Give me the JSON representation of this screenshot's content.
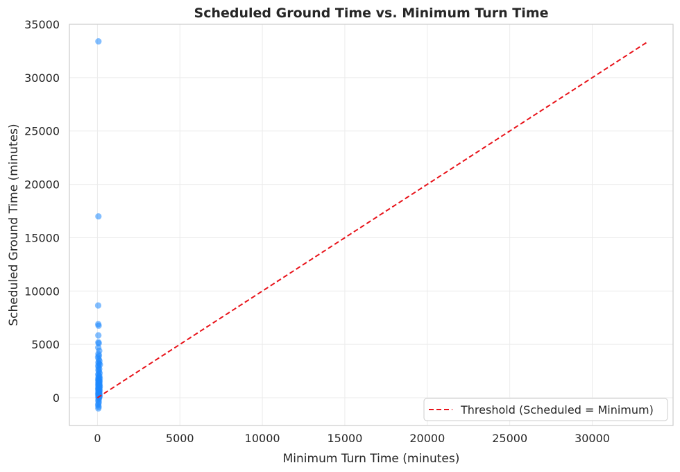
{
  "chart_data": {
    "type": "scatter",
    "title": "Scheduled Ground Time vs. Minimum Turn Time",
    "xlabel": "Minimum Turn Time (minutes)",
    "ylabel": "Scheduled Ground Time (minutes)",
    "xlim": [
      -1700,
      34900
    ],
    "ylim": [
      -2600,
      35000
    ],
    "xticks": [
      0,
      5000,
      10000,
      15000,
      20000,
      25000,
      30000
    ],
    "yticks": [
      0,
      5000,
      10000,
      15000,
      20000,
      25000,
      30000,
      35000
    ],
    "grid": true,
    "point_color": "#1e88ff",
    "threshold_color": "#e8131a",
    "series": [
      {
        "kind": "points",
        "points": [
          [
            60,
            33400
          ],
          [
            60,
            17000
          ],
          [
            45,
            8650
          ],
          [
            50,
            6900
          ],
          [
            70,
            6750
          ],
          [
            55,
            5850
          ],
          [
            60,
            5200
          ],
          [
            75,
            5100
          ],
          [
            50,
            4700
          ],
          [
            110,
            4400
          ],
          [
            60,
            4100
          ],
          [
            90,
            3950
          ],
          [
            40,
            3800
          ],
          [
            80,
            3600
          ],
          [
            120,
            3450
          ],
          [
            60,
            3300
          ],
          [
            100,
            3200
          ],
          [
            150,
            3100
          ],
          [
            50,
            3000
          ],
          [
            70,
            2850
          ],
          [
            110,
            2700
          ],
          [
            60,
            2600
          ],
          [
            90,
            2450
          ],
          [
            130,
            2300
          ],
          [
            50,
            2200
          ],
          [
            80,
            2100
          ],
          [
            120,
            2000
          ],
          [
            60,
            1900
          ],
          [
            95,
            1850
          ],
          [
            140,
            1800
          ],
          [
            45,
            1700
          ],
          [
            75,
            1650
          ],
          [
            105,
            1600
          ],
          [
            130,
            1550
          ],
          [
            55,
            1500
          ],
          [
            85,
            1450
          ],
          [
            115,
            1400
          ],
          [
            60,
            1350
          ],
          [
            90,
            1300
          ],
          [
            125,
            1250
          ],
          [
            50,
            1200
          ],
          [
            80,
            1150
          ],
          [
            110,
            1100
          ],
          [
            140,
            1050
          ],
          [
            60,
            1000
          ],
          [
            95,
            950
          ],
          [
            120,
            900
          ],
          [
            45,
            850
          ],
          [
            70,
            800
          ],
          [
            100,
            750
          ],
          [
            130,
            700
          ],
          [
            55,
            650
          ],
          [
            85,
            600
          ],
          [
            115,
            550
          ],
          [
            60,
            500
          ],
          [
            90,
            450
          ],
          [
            120,
            400
          ],
          [
            45,
            350
          ],
          [
            75,
            300
          ],
          [
            105,
            250
          ],
          [
            135,
            200
          ],
          [
            55,
            150
          ],
          [
            85,
            100
          ],
          [
            115,
            50
          ],
          [
            60,
            0
          ],
          [
            90,
            -100
          ],
          [
            50,
            -250
          ],
          [
            80,
            -400
          ],
          [
            60,
            -550
          ],
          [
            45,
            -700
          ],
          [
            70,
            -850
          ],
          [
            55,
            -1000
          ]
        ]
      },
      {
        "kind": "line",
        "name": "Threshold (Scheduled = Minimum)",
        "x": [
          0,
          33400
        ],
        "y": [
          0,
          33400
        ]
      }
    ],
    "legend": {
      "position": "lower-right"
    }
  }
}
